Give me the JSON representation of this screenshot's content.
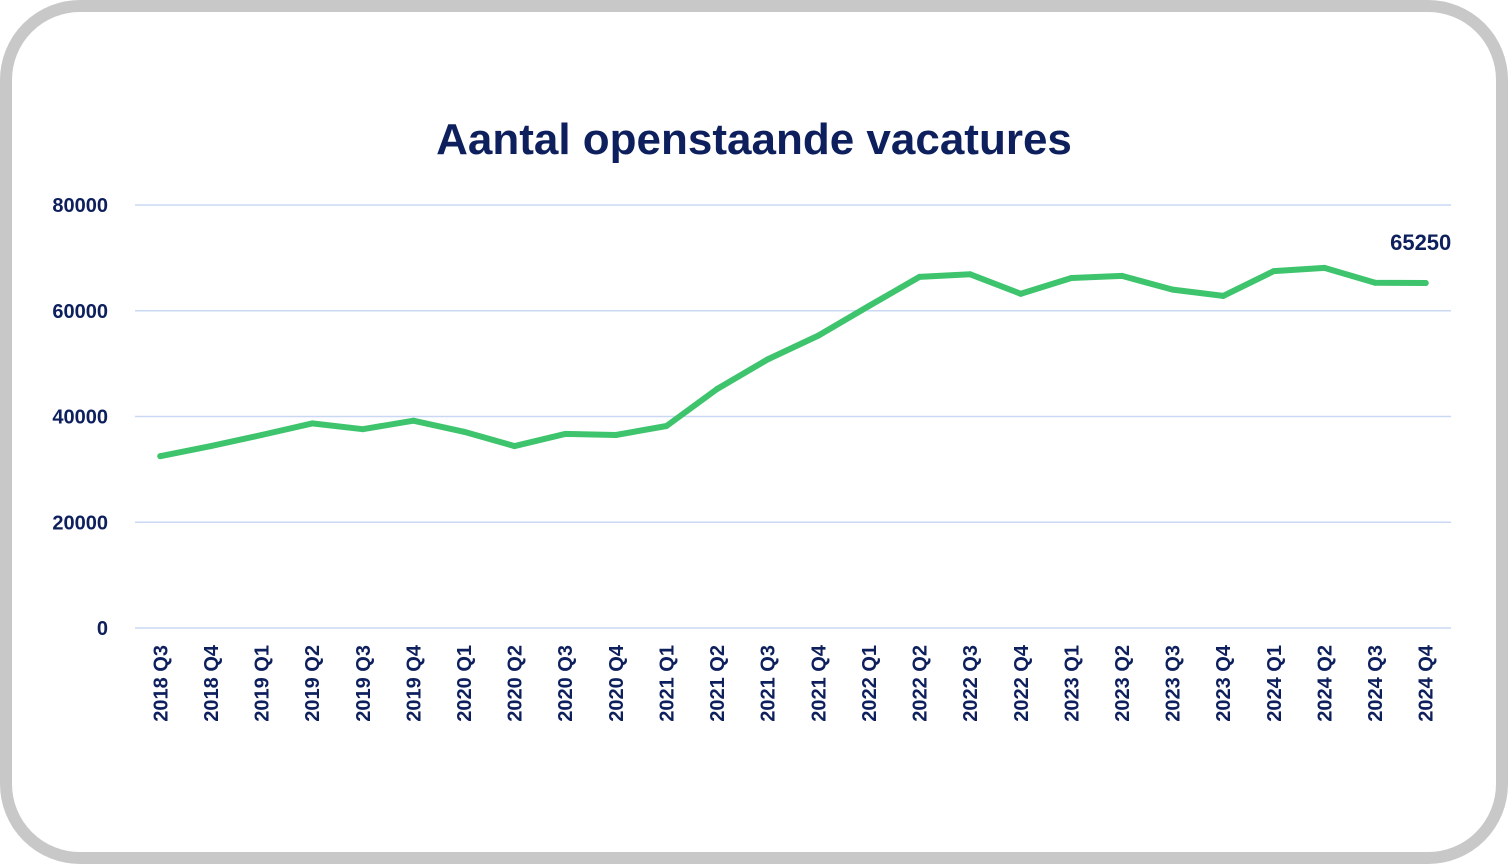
{
  "colors": {
    "line": "#3ec46d",
    "text": "#0d1f5c",
    "grid": "#c9d9f4",
    "frame": "#c8c8c8"
  },
  "chart_data": {
    "type": "line",
    "title": "Aantal openstaande vacatures",
    "xlabel": "",
    "ylabel": "",
    "ylim": [
      0,
      80000
    ],
    "yticks": [
      "0",
      "20000",
      "40000",
      "60000",
      "80000"
    ],
    "grid": true,
    "categories": [
      "2018 Q3",
      "2018 Q4",
      "2019 Q1",
      "2019 Q2",
      "2019 Q3",
      "2019 Q4",
      "2020 Q1",
      "2020 Q2",
      "2020 Q3",
      "2020 Q4",
      "2021 Q1",
      "2021 Q2",
      "2021 Q3",
      "2021 Q4",
      "2022 Q1",
      "2022 Q2",
      "2022 Q3",
      "2022 Q4",
      "2023 Q1",
      "2023 Q2",
      "2023 Q3",
      "2023 Q4",
      "2024 Q1",
      "2024 Q2",
      "2024 Q3",
      "2024 Q4"
    ],
    "series": [
      {
        "values": [
          32500,
          34400,
          36500,
          38700,
          37600,
          39200,
          37100,
          34400,
          36700,
          36500,
          38200,
          45200,
          50800,
          55300,
          60900,
          66400,
          66900,
          63200,
          66200,
          66600,
          64000,
          62800,
          67500,
          68100,
          65300,
          65250
        ]
      }
    ],
    "data_labels": [
      {
        "category": "2024 Q4",
        "text": "65250"
      }
    ]
  }
}
